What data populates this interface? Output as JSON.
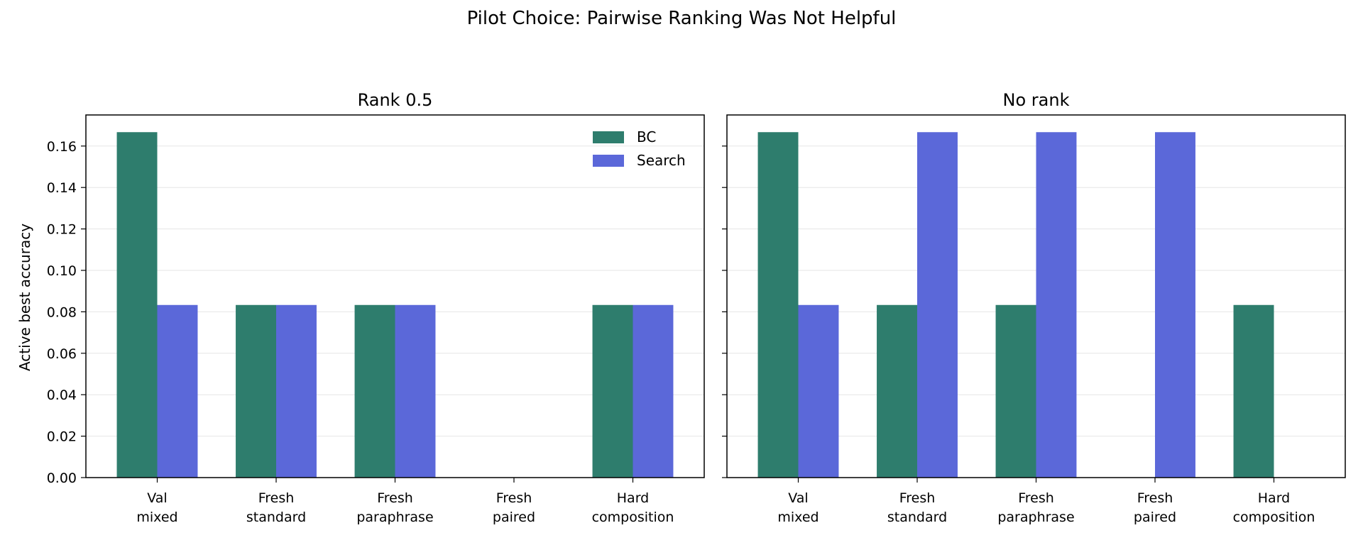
{
  "figure": {
    "suptitle": "Pilot Choice: Pairwise Ranking Was Not Helpful",
    "ylabel": "Active best accuracy"
  },
  "colors": {
    "BC": "#2e7d6d",
    "Search": "#5b68d9",
    "grid": "#e6e6e6"
  },
  "chart_data": [
    {
      "type": "bar",
      "title": "Rank 0.5",
      "categories": [
        "Val\nmixed",
        "Fresh\nstandard",
        "Fresh\nparaphrase",
        "Fresh\npaired",
        "Hard\ncomposition"
      ],
      "series": [
        {
          "name": "BC",
          "values": [
            0.1667,
            0.0833,
            0.0833,
            0,
            0.0833
          ]
        },
        {
          "name": "Search",
          "values": [
            0.0833,
            0.0833,
            0.0833,
            0,
            0.0833
          ]
        }
      ],
      "ylabel": "Active best accuracy",
      "ylim": [
        0,
        0.175
      ],
      "yticks": [
        "0.00",
        "0.02",
        "0.04",
        "0.06",
        "0.08",
        "0.10",
        "0.12",
        "0.14",
        "0.16"
      ],
      "grid": "horizontal",
      "legend": "top-right"
    },
    {
      "type": "bar",
      "title": "No rank",
      "categories": [
        "Val\nmixed",
        "Fresh\nstandard",
        "Fresh\nparaphrase",
        "Fresh\npaired",
        "Hard\ncomposition"
      ],
      "series": [
        {
          "name": "BC",
          "values": [
            0.1667,
            0.0833,
            0.0833,
            0,
            0.0833
          ]
        },
        {
          "name": "Search",
          "values": [
            0.0833,
            0.1667,
            0.1667,
            0.1667,
            0
          ]
        }
      ],
      "ylim": [
        0,
        0.175
      ],
      "yticks": [
        "0.00",
        "0.02",
        "0.04",
        "0.06",
        "0.08",
        "0.10",
        "0.12",
        "0.14",
        "0.16"
      ],
      "grid": "horizontal",
      "legend": "none"
    }
  ]
}
